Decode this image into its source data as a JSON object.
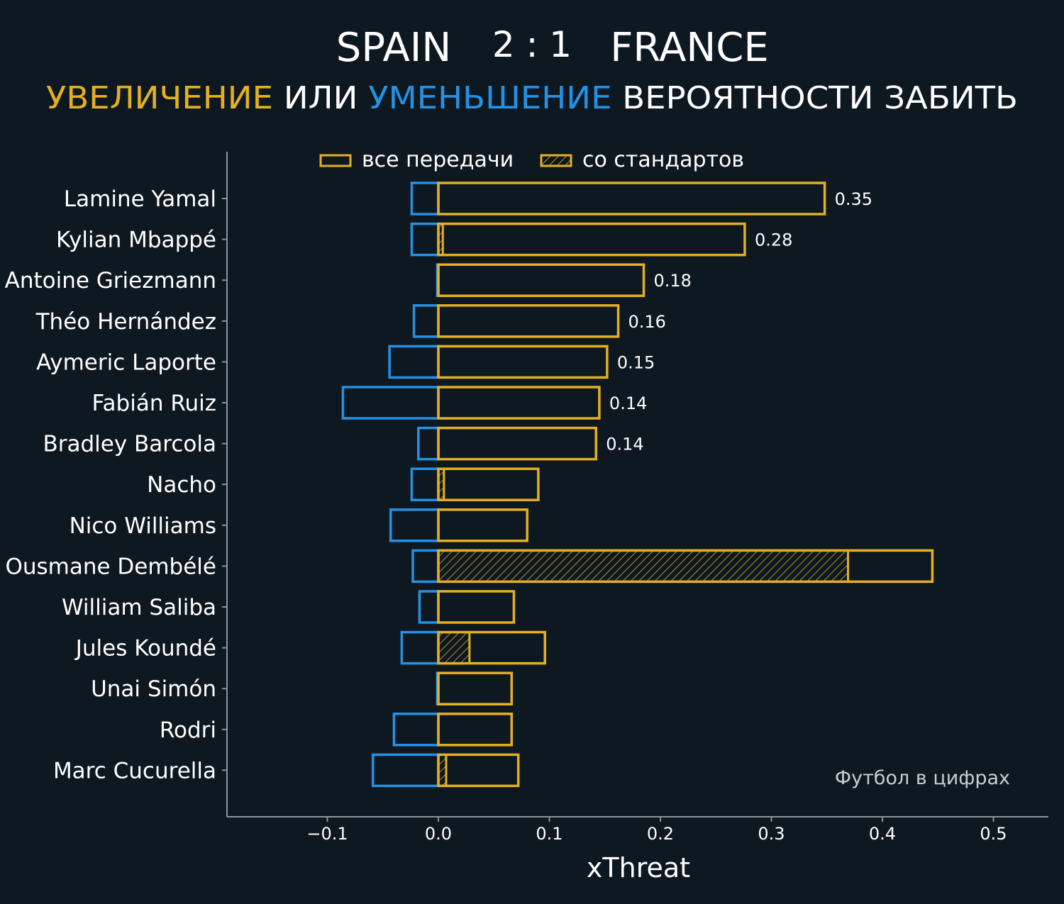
{
  "header": {
    "team_home": "SPAIN",
    "score": "2 : 1",
    "team_away": "FRANCE",
    "subtitle_increase": "УВЕЛИЧЕНИЕ",
    "subtitle_or": "ИЛИ",
    "subtitle_decrease": "УМЕНЬШЕНИЕ",
    "subtitle_rest": "ВЕРОЯТНОСТИ ЗАБИТЬ"
  },
  "colors": {
    "background": "#0e1821",
    "increase": "#e4b022",
    "decrease": "#2591e4",
    "axis": "#8a949c",
    "text": "#ffffff",
    "watermark": "#c9ced2"
  },
  "legend": {
    "all_passes": "все передачи",
    "set_pieces": "со стандартов"
  },
  "watermark": "Футбол в цифрах",
  "chart_data": {
    "type": "bar",
    "orientation": "horizontal",
    "xlabel": "xThreat",
    "xlim": [
      -0.19,
      0.55
    ],
    "xticks": [
      -0.1,
      0.0,
      0.1,
      0.2,
      0.3,
      0.4,
      0.5
    ],
    "xtick_labels": [
      "−0.1",
      "0.0",
      "0.1",
      "0.2",
      "0.3",
      "0.4",
      "0.5"
    ],
    "categories": [
      "Lamine Yamal",
      "Kylian Mbappé",
      "Antoine Griezmann",
      "Théo Hernández",
      "Aymeric Laporte",
      "Fabián Ruiz",
      "Bradley Barcola",
      "Nacho",
      "Nico Williams",
      "Ousmane Dembélé",
      "William Saliba",
      "Jules Koundé",
      "Unai Simón",
      "Rodri",
      "Marc Cucurella"
    ],
    "series": [
      {
        "name": "все передачи (увеличение)",
        "values": [
          0.348,
          0.276,
          0.185,
          0.162,
          0.152,
          0.145,
          0.142,
          0.09,
          0.08,
          0.445,
          0.068,
          0.096,
          0.066,
          0.066,
          0.072
        ]
      },
      {
        "name": "все передачи (уменьшение)",
        "values": [
          -0.024,
          -0.024,
          -0.001,
          -0.022,
          -0.044,
          -0.086,
          -0.018,
          -0.024,
          -0.043,
          -0.023,
          -0.017,
          -0.033,
          -0.001,
          -0.04,
          -0.059
        ]
      },
      {
        "name": "со стандартов",
        "values": [
          0,
          0.004,
          0,
          0,
          0,
          0,
          0,
          0.005,
          0,
          0.369,
          0,
          0.028,
          0,
          0,
          0.007
        ]
      }
    ],
    "value_labels": [
      "0.35",
      "0.28",
      "0.18",
      "0.16",
      "0.15",
      "0.14",
      "0.14",
      "",
      "",
      "",
      "",
      "",
      "",
      "",
      ""
    ]
  }
}
